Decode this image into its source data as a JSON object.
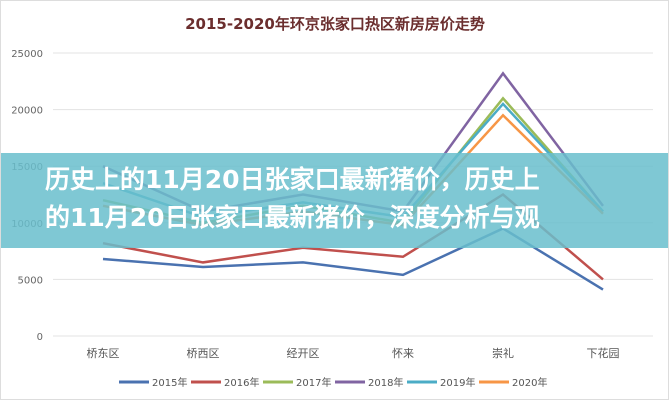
{
  "chart_data": {
    "type": "line",
    "title": "2015-2020年环京张家口热区新房房价走势",
    "categories": [
      "桥东区",
      "桥西区",
      "经开区",
      "怀来",
      "崇礼",
      "下花园"
    ],
    "ylim": [
      0,
      25000
    ],
    "yticks": [
      0,
      5000,
      10000,
      15000,
      20000,
      25000
    ],
    "grid": true,
    "legend": "bottom",
    "series": [
      {
        "name": "2015年",
        "color": "#4a72b0",
        "values": [
          6800,
          6100,
          6500,
          5400,
          9500,
          4100
        ]
      },
      {
        "name": "2016年",
        "color": "#c0504d",
        "values": [
          8200,
          6500,
          7800,
          7000,
          12500,
          5000
        ]
      },
      {
        "name": "2017年",
        "color": "#9bbb59",
        "values": [
          12000,
          10000,
          11500,
          10000,
          21000,
          11000
        ]
      },
      {
        "name": "2018年",
        "color": "#8064a2",
        "values": [
          15000,
          11000,
          12500,
          11000,
          23200,
          11500
        ]
      },
      {
        "name": "2019年",
        "color": "#4bacc6",
        "values": [
          13500,
          10500,
          11800,
          10500,
          20500,
          11000
        ]
      },
      {
        "name": "2020年",
        "color": "#f79646",
        "values": [
          11500,
          9800,
          11000,
          9800,
          19500,
          10800
        ]
      }
    ]
  },
  "banner": {
    "line1": "历史上的11月20日张家口最新猪价，历史上",
    "line2": "的11月20日张家口最新猪价，深度分析与观"
  }
}
